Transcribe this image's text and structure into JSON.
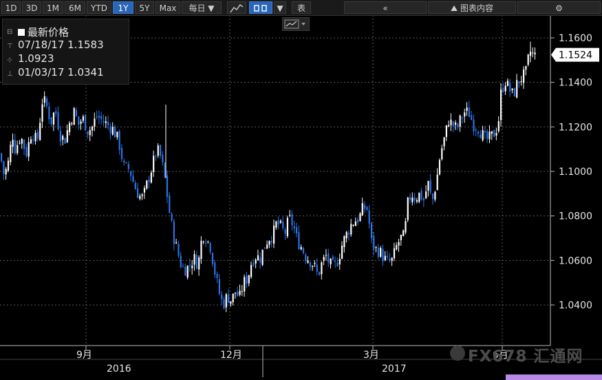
{
  "toolbar": {
    "ranges": [
      "1D",
      "3D",
      "1M",
      "6M",
      "YTD",
      "1Y",
      "5Y",
      "Max"
    ],
    "active_range": "1Y",
    "frequency": "每日 ▼",
    "table_label": "表",
    "collapse_icon": "«",
    "chart_content_label": "图表内容",
    "settings_icon": "gear-icon"
  },
  "legend": {
    "title": "最新价格",
    "high": "07/18/17 1.1583",
    "mid": "1.0923",
    "low": "01/03/17 1.0341"
  },
  "last_price_label": "1.1524",
  "watermark": "FX678 汇通网",
  "colors": {
    "up": "#ffffff",
    "down": "#2a73e8",
    "background": "#000000",
    "price_tag": "#ffffff",
    "bottom_accent": "#b98be8"
  },
  "chart_data": {
    "type": "candlestick",
    "title": "",
    "series": [],
    "ylim": [
      1.025,
      1.165
    ],
    "yticks": [
      "1.1600",
      "1.1400",
      "1.1200",
      "1.1000",
      "1.0800",
      "1.0600",
      "1.0400"
    ],
    "ytick_values": [
      1.16,
      1.14,
      1.12,
      1.1,
      1.08,
      1.06,
      1.04
    ],
    "x_month_labels": [
      "9月",
      "12月",
      "3月",
      "6月"
    ],
    "x_year_labels": [
      "2016",
      "2017"
    ],
    "keypoints": [
      [
        0,
        1.108
      ],
      [
        6,
        1.098
      ],
      [
        12,
        1.104
      ],
      [
        18,
        1.117
      ],
      [
        22,
        1.11
      ],
      [
        30,
        1.116
      ],
      [
        38,
        1.108
      ],
      [
        46,
        1.118
      ],
      [
        54,
        1.113
      ],
      [
        62,
        1.133
      ],
      [
        68,
        1.129
      ],
      [
        74,
        1.122
      ],
      [
        80,
        1.128
      ],
      [
        88,
        1.116
      ],
      [
        94,
        1.114
      ],
      [
        100,
        1.121
      ],
      [
        108,
        1.127
      ],
      [
        114,
        1.121
      ],
      [
        120,
        1.124
      ],
      [
        128,
        1.118
      ],
      [
        134,
        1.12
      ],
      [
        140,
        1.125
      ],
      [
        148,
        1.123
      ],
      [
        156,
        1.121
      ],
      [
        164,
        1.119
      ],
      [
        172,
        1.114
      ],
      [
        180,
        1.102
      ],
      [
        188,
        1.101
      ],
      [
        196,
        1.093
      ],
      [
        202,
        1.089
      ],
      [
        208,
        1.088
      ],
      [
        214,
        1.095
      ],
      [
        220,
        1.101
      ],
      [
        228,
        1.11
      ],
      [
        234,
        1.106
      ],
      [
        240,
        1.096
      ],
      [
        246,
        1.082
      ],
      [
        252,
        1.071
      ],
      [
        258,
        1.064
      ],
      [
        264,
        1.057
      ],
      [
        270,
        1.056
      ],
      [
        276,
        1.058
      ],
      [
        282,
        1.061
      ],
      [
        288,
        1.058
      ],
      [
        294,
        1.072
      ],
      [
        300,
        1.07
      ],
      [
        306,
        1.066
      ],
      [
        312,
        1.055
      ],
      [
        318,
        1.046
      ],
      [
        324,
        1.04
      ],
      [
        330,
        1.044
      ],
      [
        336,
        1.042
      ],
      [
        342,
        1.046
      ],
      [
        348,
        1.043
      ],
      [
        354,
        1.05
      ],
      [
        360,
        1.052
      ],
      [
        366,
        1.06
      ],
      [
        372,
        1.062
      ],
      [
        378,
        1.061
      ],
      [
        384,
        1.066
      ],
      [
        390,
        1.07
      ],
      [
        396,
        1.071
      ],
      [
        402,
        1.077
      ],
      [
        408,
        1.075
      ],
      [
        414,
        1.072
      ],
      [
        420,
        1.079
      ],
      [
        426,
        1.076
      ],
      [
        432,
        1.069
      ],
      [
        438,
        1.066
      ],
      [
        444,
        1.062
      ],
      [
        450,
        1.06
      ],
      [
        456,
        1.058
      ],
      [
        462,
        1.053
      ],
      [
        468,
        1.059
      ],
      [
        474,
        1.062
      ],
      [
        480,
        1.058
      ],
      [
        486,
        1.057
      ],
      [
        492,
        1.061
      ],
      [
        498,
        1.068
      ],
      [
        504,
        1.072
      ],
      [
        510,
        1.076
      ],
      [
        516,
        1.078
      ],
      [
        522,
        1.079
      ],
      [
        528,
        1.084
      ],
      [
        534,
        1.083
      ],
      [
        540,
        1.068
      ],
      [
        546,
        1.065
      ],
      [
        552,
        1.064
      ],
      [
        558,
        1.061
      ],
      [
        564,
        1.059
      ],
      [
        570,
        1.06
      ],
      [
        576,
        1.066
      ],
      [
        582,
        1.07
      ],
      [
        588,
        1.071
      ],
      [
        592,
        1.085
      ],
      [
        598,
        1.09
      ],
      [
        604,
        1.088
      ],
      [
        610,
        1.09
      ],
      [
        616,
        1.087
      ],
      [
        622,
        1.095
      ],
      [
        628,
        1.086
      ],
      [
        634,
        1.095
      ],
      [
        640,
        1.108
      ],
      [
        646,
        1.115
      ],
      [
        652,
        1.123
      ],
      [
        658,
        1.121
      ],
      [
        664,
        1.119
      ],
      [
        670,
        1.124
      ],
      [
        676,
        1.127
      ],
      [
        682,
        1.126
      ],
      [
        688,
        1.121
      ],
      [
        694,
        1.12
      ],
      [
        700,
        1.117
      ],
      [
        706,
        1.114
      ],
      [
        712,
        1.115
      ],
      [
        718,
        1.117
      ],
      [
        724,
        1.121
      ],
      [
        728,
        1.135
      ],
      [
        734,
        1.141
      ],
      [
        740,
        1.137
      ],
      [
        746,
        1.134
      ],
      [
        752,
        1.14
      ],
      [
        758,
        1.142
      ],
      [
        764,
        1.144
      ],
      [
        770,
        1.154
      ],
      [
        776,
        1.152
      ]
    ]
  }
}
